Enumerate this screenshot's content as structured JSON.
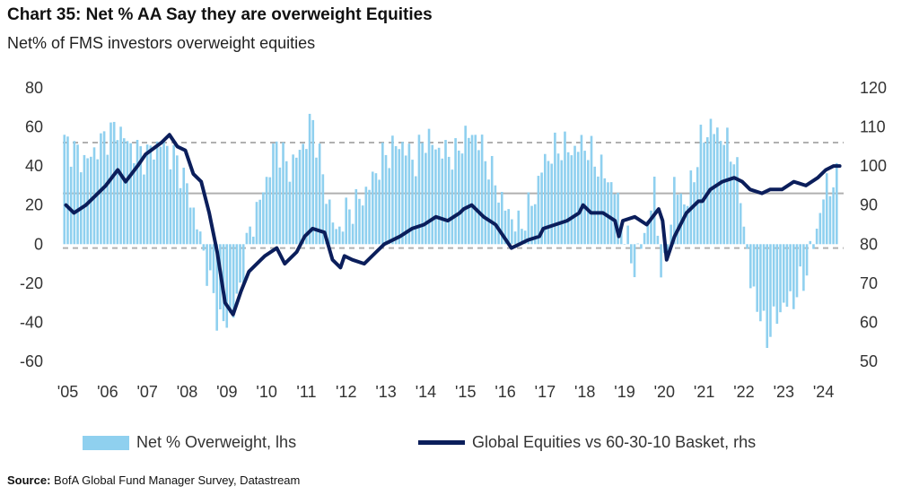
{
  "title": "Chart 35: Net % AA Say they are overweight Equities",
  "subtitle": "Net% of FMS investors overweight equities",
  "source_label": "Source:",
  "source_text": "BofA Global Fund Manager Survey, Datastream",
  "legend": {
    "bars": "Net % Overweight, lhs",
    "line": "Global Equities vs 60-30-10 Basket, rhs"
  },
  "colors": {
    "bars": "#8fd0ef",
    "line": "#0b1e5b",
    "ref_lines": "#b0b0b0"
  },
  "chart_data": {
    "type": "bar+line",
    "x_tick_labels": [
      "'05",
      "'06",
      "'07",
      "'08",
      "'09",
      "'10",
      "'11",
      "'12",
      "'13",
      "'14",
      "'15",
      "'16",
      "'17",
      "'18",
      "'19",
      "'20",
      "'21",
      "'22",
      "'23",
      "'24"
    ],
    "x_range": [
      2004.92,
      2024.55
    ],
    "y_left": {
      "ticks": [
        80,
        60,
        40,
        20,
        0,
        -20,
        -40,
        -60
      ],
      "range": [
        -60,
        80
      ]
    },
    "y_right": {
      "ticks": [
        120,
        110,
        100,
        90,
        80,
        70,
        60,
        50
      ],
      "range": [
        50,
        120
      ]
    },
    "reference_lines": [
      {
        "axis": "left",
        "value": 52,
        "style": "dashed"
      },
      {
        "axis": "left",
        "value": 26,
        "style": "solid"
      },
      {
        "axis": "left",
        "value": -2,
        "style": "dashed"
      }
    ],
    "series": [
      {
        "name": "Net % Overweight, lhs",
        "type": "bar",
        "axis": "left",
        "points": [
          [
            2005.0,
            52
          ],
          [
            2005.5,
            42
          ],
          [
            2006.0,
            55
          ],
          [
            2006.3,
            60
          ],
          [
            2006.6,
            50
          ],
          [
            2007.0,
            45
          ],
          [
            2007.4,
            52
          ],
          [
            2007.8,
            42
          ],
          [
            2008.0,
            32
          ],
          [
            2008.3,
            10
          ],
          [
            2008.6,
            -18
          ],
          [
            2008.8,
            -36
          ],
          [
            2009.0,
            -42
          ],
          [
            2009.3,
            -30
          ],
          [
            2009.6,
            5
          ],
          [
            2010.0,
            30
          ],
          [
            2010.3,
            52
          ],
          [
            2010.6,
            38
          ],
          [
            2011.0,
            52
          ],
          [
            2011.2,
            64
          ],
          [
            2011.5,
            30
          ],
          [
            2011.8,
            5
          ],
          [
            2012.0,
            15
          ],
          [
            2012.5,
            25
          ],
          [
            2013.0,
            45
          ],
          [
            2013.4,
            52
          ],
          [
            2013.8,
            42
          ],
          [
            2014.0,
            55
          ],
          [
            2014.4,
            48
          ],
          [
            2014.8,
            45
          ],
          [
            2015.0,
            55
          ],
          [
            2015.3,
            56
          ],
          [
            2015.6,
            42
          ],
          [
            2016.0,
            20
          ],
          [
            2016.4,
            8
          ],
          [
            2016.8,
            25
          ],
          [
            2017.0,
            42
          ],
          [
            2017.4,
            50
          ],
          [
            2017.8,
            48
          ],
          [
            2018.0,
            52
          ],
          [
            2018.4,
            40
          ],
          [
            2018.8,
            28
          ],
          [
            2019.0,
            8
          ],
          [
            2019.3,
            -12
          ],
          [
            2019.6,
            10
          ],
          [
            2019.8,
            28
          ],
          [
            2020.0,
            -22
          ],
          [
            2020.3,
            30
          ],
          [
            2020.6,
            20
          ],
          [
            2021.0,
            55
          ],
          [
            2021.2,
            60
          ],
          [
            2021.5,
            55
          ],
          [
            2021.8,
            45
          ],
          [
            2022.0,
            20
          ],
          [
            2022.2,
            -20
          ],
          [
            2022.4,
            -32
          ],
          [
            2022.6,
            -48
          ],
          [
            2022.8,
            -40
          ],
          [
            2023.0,
            -32
          ],
          [
            2023.3,
            -28
          ],
          [
            2023.6,
            -15
          ],
          [
            2023.9,
            10
          ],
          [
            2024.1,
            30
          ],
          [
            2024.4,
            32
          ]
        ]
      },
      {
        "name": "Global Equities vs 60-30-10 Basket, rhs",
        "type": "line",
        "axis": "right",
        "points": [
          [
            2005.0,
            90
          ],
          [
            2005.2,
            88
          ],
          [
            2005.5,
            90
          ],
          [
            2006.0,
            95
          ],
          [
            2006.3,
            99
          ],
          [
            2006.5,
            96
          ],
          [
            2006.8,
            100
          ],
          [
            2007.0,
            103
          ],
          [
            2007.4,
            106
          ],
          [
            2007.6,
            108
          ],
          [
            2007.8,
            105
          ],
          [
            2008.0,
            104
          ],
          [
            2008.2,
            98
          ],
          [
            2008.4,
            96
          ],
          [
            2008.6,
            88
          ],
          [
            2008.8,
            78
          ],
          [
            2009.0,
            65
          ],
          [
            2009.2,
            62
          ],
          [
            2009.4,
            68
          ],
          [
            2009.6,
            73
          ],
          [
            2009.9,
            76
          ],
          [
            2010.0,
            77
          ],
          [
            2010.3,
            79
          ],
          [
            2010.5,
            75
          ],
          [
            2010.8,
            78
          ],
          [
            2011.0,
            82
          ],
          [
            2011.2,
            84
          ],
          [
            2011.5,
            83
          ],
          [
            2011.7,
            76
          ],
          [
            2011.9,
            74
          ],
          [
            2012.0,
            77
          ],
          [
            2012.2,
            76
          ],
          [
            2012.5,
            75
          ],
          [
            2012.8,
            78
          ],
          [
            2013.0,
            80
          ],
          [
            2013.4,
            82
          ],
          [
            2013.7,
            84
          ],
          [
            2014.0,
            85
          ],
          [
            2014.3,
            87
          ],
          [
            2014.6,
            86
          ],
          [
            2014.9,
            88
          ],
          [
            2015.0,
            89
          ],
          [
            2015.2,
            90
          ],
          [
            2015.5,
            87
          ],
          [
            2015.8,
            85
          ],
          [
            2016.0,
            82
          ],
          [
            2016.2,
            79
          ],
          [
            2016.4,
            80
          ],
          [
            2016.6,
            81
          ],
          [
            2016.9,
            82
          ],
          [
            2017.0,
            84
          ],
          [
            2017.3,
            85
          ],
          [
            2017.6,
            86
          ],
          [
            2017.9,
            88
          ],
          [
            2018.0,
            90
          ],
          [
            2018.2,
            88
          ],
          [
            2018.5,
            88
          ],
          [
            2018.8,
            86
          ],
          [
            2018.9,
            82
          ],
          [
            2019.0,
            86
          ],
          [
            2019.3,
            87
          ],
          [
            2019.6,
            85
          ],
          [
            2019.9,
            89
          ],
          [
            2020.0,
            86
          ],
          [
            2020.1,
            76
          ],
          [
            2020.3,
            82
          ],
          [
            2020.6,
            88
          ],
          [
            2020.9,
            91
          ],
          [
            2021.0,
            91
          ],
          [
            2021.2,
            94
          ],
          [
            2021.5,
            96
          ],
          [
            2021.8,
            97
          ],
          [
            2022.0,
            96
          ],
          [
            2022.2,
            94
          ],
          [
            2022.5,
            93
          ],
          [
            2022.7,
            94
          ],
          [
            2023.0,
            94
          ],
          [
            2023.3,
            96
          ],
          [
            2023.6,
            95
          ],
          [
            2023.9,
            97
          ],
          [
            2024.1,
            99
          ],
          [
            2024.3,
            100
          ],
          [
            2024.45,
            100
          ]
        ]
      }
    ]
  }
}
